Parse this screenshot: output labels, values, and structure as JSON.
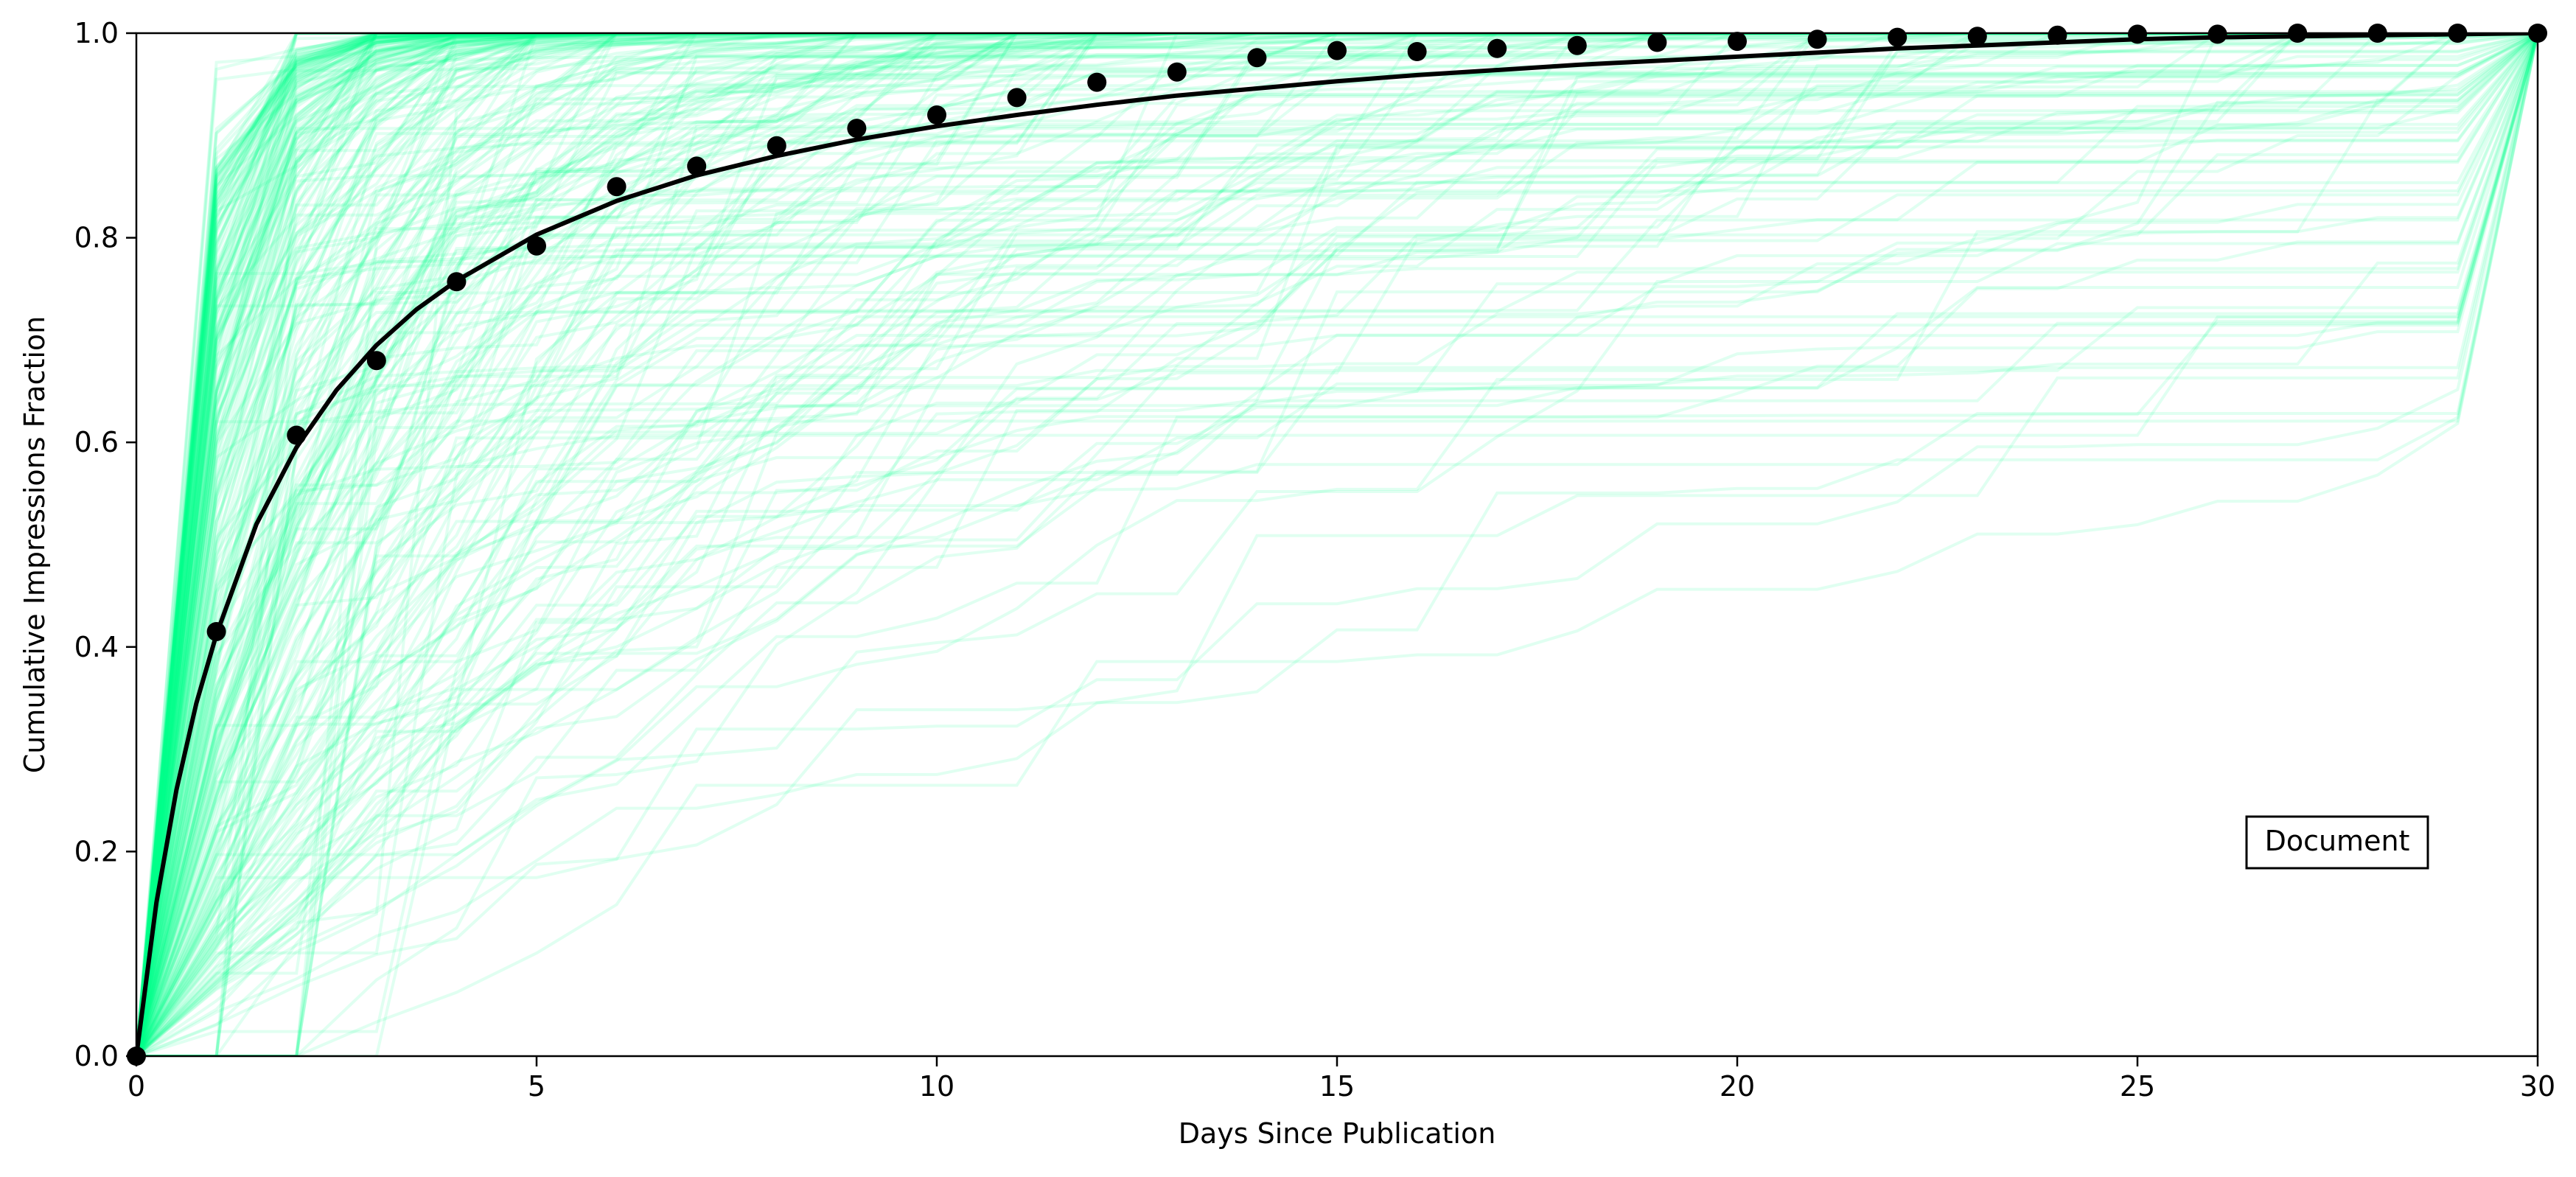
{
  "chart_data": {
    "type": "line",
    "title": "",
    "xlabel": "Days Since Publication",
    "ylabel": "Cumulative Impressions Fraction",
    "xlim": [
      0,
      30
    ],
    "ylim": [
      0.0,
      1.0
    ],
    "x_ticks": [
      0,
      5,
      10,
      15,
      20,
      25,
      30
    ],
    "x_tick_labels": [
      "0",
      "5",
      "10",
      "15",
      "20",
      "25",
      "30"
    ],
    "y_ticks": [
      0.0,
      0.2,
      0.4,
      0.6,
      0.8,
      1.0
    ],
    "y_tick_labels": [
      "0.0",
      "0.2",
      "0.4",
      "0.6",
      "0.8",
      "1.0"
    ],
    "grid": false,
    "annotation": "Document",
    "colors": {
      "individual_curves": "#00ff88",
      "mean": "#000000",
      "fit": "#000000"
    },
    "individual_curves": {
      "count": 320,
      "description_days": 30
    },
    "series": [
      {
        "x": [
          0,
          1,
          2,
          3,
          4,
          5,
          6,
          7,
          8,
          9,
          10,
          11,
          12,
          13,
          14,
          15,
          16,
          17,
          18,
          19,
          20,
          21,
          22,
          23,
          24,
          25,
          26,
          27,
          28,
          29,
          30
        ],
        "values": [
          0.0,
          0.415,
          0.607,
          0.68,
          0.757,
          0.792,
          0.85,
          0.87,
          0.89,
          0.907,
          0.92,
          0.937,
          0.952,
          0.962,
          0.976,
          0.983,
          0.982,
          0.985,
          0.988,
          0.991,
          0.992,
          0.994,
          0.996,
          0.997,
          0.998,
          0.999,
          0.999,
          1.0,
          1.0,
          1.0,
          1.0
        ],
        "style": "markers"
      },
      {
        "x": [
          0,
          0.25,
          0.5,
          0.75,
          1,
          1.5,
          2,
          2.5,
          3,
          3.5,
          4,
          5,
          6,
          7,
          8,
          9,
          10,
          11,
          12,
          13,
          14,
          15,
          16,
          17,
          18,
          19,
          20,
          21,
          22,
          23,
          24,
          25,
          26,
          27,
          28,
          29,
          30
        ],
        "values": [
          0.0,
          0.15,
          0.26,
          0.345,
          0.412,
          0.52,
          0.595,
          0.651,
          0.695,
          0.73,
          0.758,
          0.803,
          0.836,
          0.861,
          0.88,
          0.896,
          0.909,
          0.92,
          0.93,
          0.939,
          0.946,
          0.953,
          0.959,
          0.964,
          0.969,
          0.973,
          0.977,
          0.981,
          0.985,
          0.988,
          0.991,
          0.994,
          0.996,
          0.997,
          0.998,
          0.999,
          1.0
        ],
        "style": "line"
      }
    ]
  }
}
